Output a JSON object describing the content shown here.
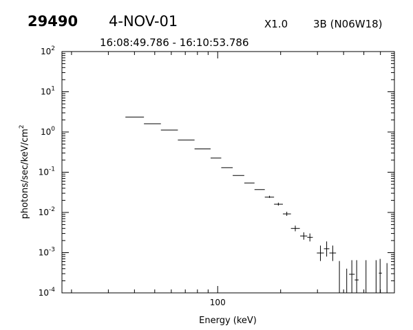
{
  "header": {
    "event_id": "29490",
    "date": "4-NOV-01",
    "goes_class": "X1.0",
    "flare_location": "3B (N06W18)",
    "time_range": "16:08:49.786 - 16:10:53.786"
  },
  "chart_data": {
    "type": "scatter",
    "title": "",
    "xlabel": "Energy (keV)",
    "ylabel": "photons/sec/keV/cm",
    "ylabel_superscript": "2",
    "x_scale": "log",
    "y_scale": "log",
    "xlim": [
      18,
      700
    ],
    "ylim": [
      0.0001,
      100
    ],
    "x_tick_labels": [
      {
        "value": 100,
        "label": "100"
      }
    ],
    "x_minor_ticks": [
      20,
      30,
      40,
      50,
      60,
      70,
      80,
      90,
      200,
      300,
      400,
      500,
      600,
      700
    ],
    "y_ticks": [
      {
        "value": 100,
        "base": "10",
        "exp": "2"
      },
      {
        "value": 10,
        "base": "10",
        "exp": "1"
      },
      {
        "value": 1,
        "base": "10",
        "exp": "0"
      },
      {
        "value": 0.1,
        "base": "10",
        "exp": "-1"
      },
      {
        "value": 0.01,
        "base": "10",
        "exp": "-2"
      },
      {
        "value": 0.001,
        "base": "10",
        "exp": "-3"
      },
      {
        "value": 0.0001,
        "base": "10",
        "exp": "-4"
      }
    ],
    "grid": false,
    "legend": "none",
    "series": [
      {
        "points": [
          {
            "x": 40,
            "xmin": 36.2,
            "xmax": 44.4,
            "y": 2.35,
            "ylo": 2.35,
            "yhi": 2.35
          },
          {
            "x": 48.5,
            "xmin": 44.4,
            "xmax": 53.5,
            "y": 1.6,
            "ylo": 1.6,
            "yhi": 1.6
          },
          {
            "x": 58.5,
            "xmin": 53.5,
            "xmax": 64.5,
            "y": 1.12,
            "ylo": 1.12,
            "yhi": 1.12
          },
          {
            "x": 70.5,
            "xmin": 64.5,
            "xmax": 77.5,
            "y": 0.63,
            "ylo": 0.63,
            "yhi": 0.63
          },
          {
            "x": 84.5,
            "xmin": 77.5,
            "xmax": 92.5,
            "y": 0.38,
            "ylo": 0.38,
            "yhi": 0.38
          },
          {
            "x": 97.5,
            "xmin": 92.5,
            "xmax": 104,
            "y": 0.225,
            "ylo": 0.225,
            "yhi": 0.225
          },
          {
            "x": 111,
            "xmin": 104,
            "xmax": 118,
            "y": 0.13,
            "ylo": 0.13,
            "yhi": 0.13
          },
          {
            "x": 126,
            "xmin": 118,
            "xmax": 134,
            "y": 0.083,
            "ylo": 0.083,
            "yhi": 0.083
          },
          {
            "x": 142,
            "xmin": 134,
            "xmax": 150,
            "y": 0.054,
            "ylo": 0.054,
            "yhi": 0.054
          },
          {
            "x": 159,
            "xmin": 150,
            "xmax": 168,
            "y": 0.037,
            "ylo": 0.037,
            "yhi": 0.037
          },
          {
            "x": 177,
            "xmin": 168,
            "xmax": 186,
            "y": 0.024,
            "ylo": 0.023,
            "yhi": 0.026
          },
          {
            "x": 195,
            "xmin": 186,
            "xmax": 205,
            "y": 0.016,
            "ylo": 0.0148,
            "yhi": 0.0175
          },
          {
            "x": 214,
            "xmin": 205,
            "xmax": 224,
            "y": 0.0092,
            "ylo": 0.0082,
            "yhi": 0.0104
          },
          {
            "x": 235,
            "xmin": 224,
            "xmax": 247,
            "y": 0.004,
            "ylo": 0.0034,
            "yhi": 0.0047
          },
          {
            "x": 258,
            "xmin": 248,
            "xmax": 268,
            "y": 0.0026,
            "ylo": 0.0021,
            "yhi": 0.0032
          },
          {
            "x": 276,
            "xmin": 268,
            "xmax": 285,
            "y": 0.0024,
            "ylo": 0.0019,
            "yhi": 0.003
          },
          {
            "x": 310,
            "xmin": 298,
            "xmax": 322,
            "y": 0.00098,
            "ylo": 0.00062,
            "yhi": 0.0015
          },
          {
            "x": 332,
            "xmin": 322,
            "xmax": 342,
            "y": 0.00125,
            "ylo": 0.0008,
            "yhi": 0.0019
          },
          {
            "x": 355,
            "xmin": 342,
            "xmax": 368,
            "y": 0.00098,
            "ylo": 0.00062,
            "yhi": 0.0015
          },
          {
            "x": 382,
            "xmin": 368,
            "xmax": 395,
            "y": 0.0001,
            "ylo": 0.0001,
            "yhi": 0.00062
          },
          {
            "x": 414,
            "xmin": 405,
            "xmax": 425,
            "y": 0.0001,
            "ylo": 0.0001,
            "yhi": 0.0004
          },
          {
            "x": 438,
            "xmin": 425,
            "xmax": 452,
            "y": 0.00029,
            "ylo": 0.0001,
            "yhi": 0.00065
          },
          {
            "x": 462,
            "xmin": 452,
            "xmax": 472,
            "y": 0.00021,
            "ylo": 0.0001,
            "yhi": 0.00065
          },
          {
            "x": 512,
            "xmin": 505,
            "xmax": 520,
            "y": 0.0001,
            "ylo": 0.0001,
            "yhi": 0.00065
          },
          {
            "x": 572,
            "xmin": 565,
            "xmax": 580,
            "y": 0.0001,
            "ylo": 0.0001,
            "yhi": 0.00065
          },
          {
            "x": 598,
            "xmin": 590,
            "xmax": 610,
            "y": 0.00031,
            "ylo": 0.0001,
            "yhi": 0.0007
          },
          {
            "x": 645,
            "xmin": 640,
            "xmax": 650,
            "y": 0.0001,
            "ylo": 0.0001,
            "yhi": 0.00055
          }
        ]
      }
    ]
  }
}
